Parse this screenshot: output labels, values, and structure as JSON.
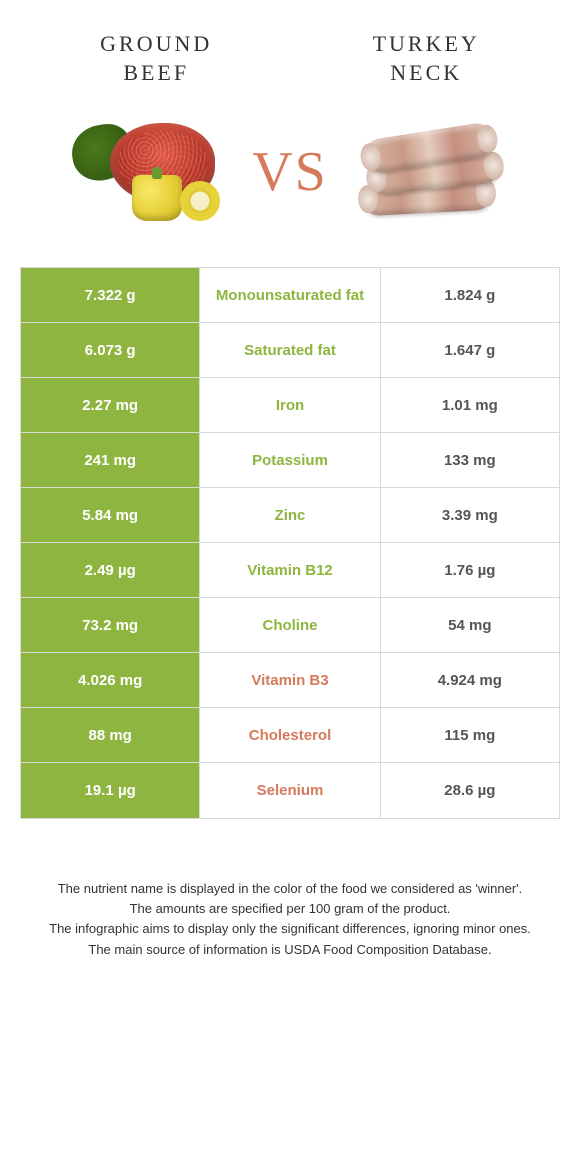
{
  "header": {
    "left_title": "GROUND\nBEEF",
    "right_title": "TURKEY\nNECK",
    "vs": "VS"
  },
  "colors": {
    "left_bg": "#8eb53f",
    "left_text": "#ffffff",
    "right_bg": "#ffffff",
    "right_text": "#555555",
    "mid_left_winner": "#8eb53f",
    "mid_right_winner": "#d67a5c",
    "vs_color": "#d67a5c",
    "border": "#d8d8d8"
  },
  "nutrients": [
    {
      "label": "Monounsaturated fat",
      "left": "7.322 g",
      "right": "1.824 g",
      "winner": "left"
    },
    {
      "label": "Saturated fat",
      "left": "6.073 g",
      "right": "1.647 g",
      "winner": "left"
    },
    {
      "label": "Iron",
      "left": "2.27 mg",
      "right": "1.01 mg",
      "winner": "left"
    },
    {
      "label": "Potassium",
      "left": "241 mg",
      "right": "133 mg",
      "winner": "left"
    },
    {
      "label": "Zinc",
      "left": "5.84 mg",
      "right": "3.39 mg",
      "winner": "left"
    },
    {
      "label": "Vitamin B12",
      "left": "2.49 µg",
      "right": "1.76 µg",
      "winner": "left"
    },
    {
      "label": "Choline",
      "left": "73.2 mg",
      "right": "54 mg",
      "winner": "left"
    },
    {
      "label": "Vitamin B3",
      "left": "4.026 mg",
      "right": "4.924 mg",
      "winner": "right"
    },
    {
      "label": "Cholesterol",
      "left": "88 mg",
      "right": "115 mg",
      "winner": "right"
    },
    {
      "label": "Selenium",
      "left": "19.1 µg",
      "right": "28.6 µg",
      "winner": "right"
    }
  ],
  "footnotes": [
    "The nutrient name is displayed in the color of the food we considered as 'winner'.",
    "The amounts are specified per 100 gram of the product.",
    "The infographic aims to display only the significant differences, ignoring minor ones.",
    "The main source of information is USDA Food Composition Database."
  ]
}
